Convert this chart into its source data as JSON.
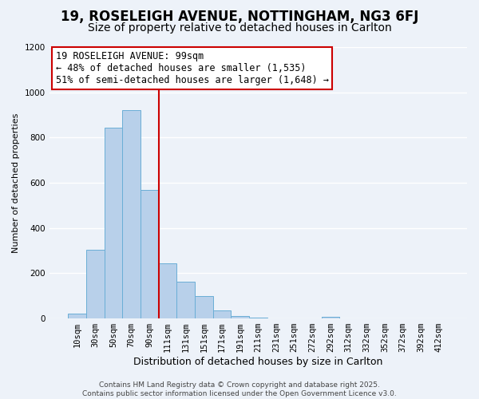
{
  "title": "19, ROSELEIGH AVENUE, NOTTINGHAM, NG3 6FJ",
  "subtitle": "Size of property relative to detached houses in Carlton",
  "xlabel": "Distribution of detached houses by size in Carlton",
  "ylabel": "Number of detached properties",
  "footer_line1": "Contains HM Land Registry data © Crown copyright and database right 2025.",
  "footer_line2": "Contains public sector information licensed under the Open Government Licence v3.0.",
  "bin_labels": [
    "10sqm",
    "30sqm",
    "50sqm",
    "70sqm",
    "90sqm",
    "111sqm",
    "131sqm",
    "151sqm",
    "171sqm",
    "191sqm",
    "211sqm",
    "231sqm",
    "251sqm",
    "272sqm",
    "292sqm",
    "312sqm",
    "332sqm",
    "352sqm",
    "372sqm",
    "392sqm",
    "412sqm"
  ],
  "bar_heights": [
    20,
    305,
    845,
    920,
    570,
    245,
    163,
    100,
    35,
    12,
    5,
    0,
    2,
    0,
    8,
    0,
    0,
    0,
    0,
    0,
    0
  ],
  "bar_color": "#b8d0ea",
  "bar_edge_color": "#6aaed6",
  "ylim": [
    0,
    1200
  ],
  "yticks": [
    0,
    200,
    400,
    600,
    800,
    1000,
    1200
  ],
  "red_line_x": 4.5,
  "annotation_title": "19 ROSELEIGH AVENUE: 99sqm",
  "annotation_line1": "← 48% of detached houses are smaller (1,535)",
  "annotation_line2": "51% of semi-detached houses are larger (1,648) →",
  "annotation_box_facecolor": "#ffffff",
  "annotation_box_edgecolor": "#cc0000",
  "red_line_color": "#cc0000",
  "background_color": "#edf2f9",
  "grid_color": "#ffffff",
  "title_fontsize": 12,
  "subtitle_fontsize": 10,
  "xlabel_fontsize": 9,
  "ylabel_fontsize": 8,
  "tick_fontsize": 7.5,
  "annotation_fontsize": 8.5,
  "footer_fontsize": 6.5
}
